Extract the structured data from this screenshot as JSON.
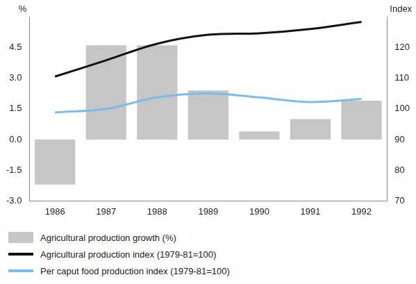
{
  "chart_data": {
    "type": "bar",
    "ylabel": "%",
    "y2label": "Index",
    "categories": [
      "1986",
      "1987",
      "1988",
      "1989",
      "1990",
      "1991",
      "1992"
    ],
    "series": [
      {
        "name": "Agricultural production growth (%)",
        "type": "bar",
        "color": "#c6c6c6",
        "values": [
          -2.2,
          4.6,
          4.6,
          2.4,
          0.4,
          1.0,
          1.9
        ]
      },
      {
        "name": "Agricultural production index (1979-81=100)",
        "type": "line",
        "axis": "y2",
        "color": "#111111",
        "values": [
          110.5,
          115.8,
          121.2,
          124.1,
          124.6,
          126.0,
          128.3
        ]
      },
      {
        "name": "Per caput food production index (1979-81=100)",
        "type": "line",
        "axis": "y2",
        "color": "#7cbce8",
        "values": [
          98.8,
          100.0,
          103.7,
          105.0,
          103.7,
          102.2,
          103.2
        ]
      }
    ],
    "ylim": [
      -3,
      6
    ],
    "yticks": [
      {
        "value": -3,
        "label": "-3.0"
      },
      {
        "value": -1.5,
        "label": "-1.5"
      },
      {
        "value": 0,
        "label": "0.0"
      },
      {
        "value": 1.5,
        "label": "1.5"
      },
      {
        "value": 3,
        "label": "3.0"
      },
      {
        "value": 4.5,
        "label": "4.5"
      }
    ],
    "y2lim": [
      70,
      130
    ],
    "y2ticks": [
      70,
      80,
      90,
      100,
      110,
      120
    ],
    "grid": false,
    "legend": "bottom-left"
  }
}
